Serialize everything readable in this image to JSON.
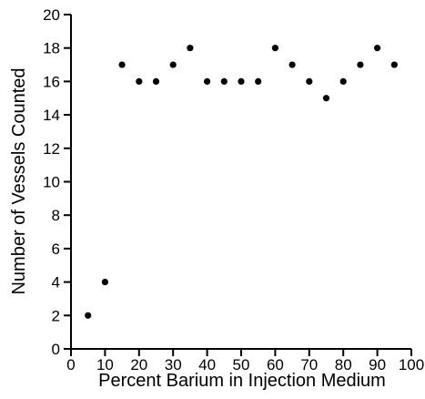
{
  "chart_data": {
    "type": "scatter",
    "xlabel": "Percent Barium in Injection Medium",
    "ylabel": "Number of Vessels Counted",
    "xlim": [
      0,
      100
    ],
    "ylim": [
      0,
      20
    ],
    "xticks": [
      0,
      10,
      20,
      30,
      40,
      50,
      60,
      70,
      80,
      90,
      100
    ],
    "yticks": [
      0,
      2,
      4,
      6,
      8,
      10,
      12,
      14,
      16,
      18,
      20
    ],
    "grid": false,
    "series": [
      {
        "x": [
          5,
          10,
          15,
          20,
          25,
          30,
          35,
          40,
          45,
          50,
          55,
          60,
          65,
          70,
          75,
          80,
          85,
          90,
          95
        ],
        "y": [
          2,
          4,
          17,
          16,
          16,
          17,
          18,
          16,
          16,
          16,
          16,
          18,
          17,
          16,
          15,
          16,
          17,
          18,
          17
        ],
        "color": "#000000"
      }
    ]
  }
}
